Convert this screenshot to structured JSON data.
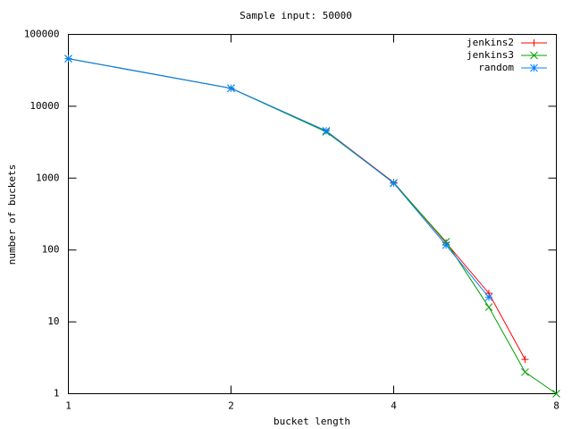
{
  "chart_data": {
    "type": "line",
    "title": "Sample input: 50000",
    "x_label": "bucket length",
    "y_label": "number of buckets",
    "x": [
      1,
      2,
      3,
      4,
      5,
      6,
      7,
      8
    ],
    "series": [
      {
        "name": "jenkins2",
        "color": "#ff0000",
        "marker": "+",
        "values": [
          46000,
          17800,
          4550,
          870,
          126,
          25,
          3,
          null
        ]
      },
      {
        "name": "jenkins3",
        "color": "#00a000",
        "marker": "x",
        "values": [
          46000,
          17800,
          4400,
          860,
          130,
          16,
          2,
          1
        ]
      },
      {
        "name": "random",
        "color": "#0080ff",
        "marker": "*",
        "values": [
          46000,
          17800,
          4550,
          850,
          117,
          22,
          null,
          null
        ]
      }
    ],
    "xlim": [
      1,
      8
    ],
    "xticks": [
      1,
      2,
      4,
      8
    ],
    "x_log": true,
    "ylim": [
      1,
      100000
    ],
    "yticks": [
      1,
      10,
      100,
      1000,
      10000,
      100000
    ],
    "y_log": true,
    "grid": false,
    "legend": "top-right"
  }
}
